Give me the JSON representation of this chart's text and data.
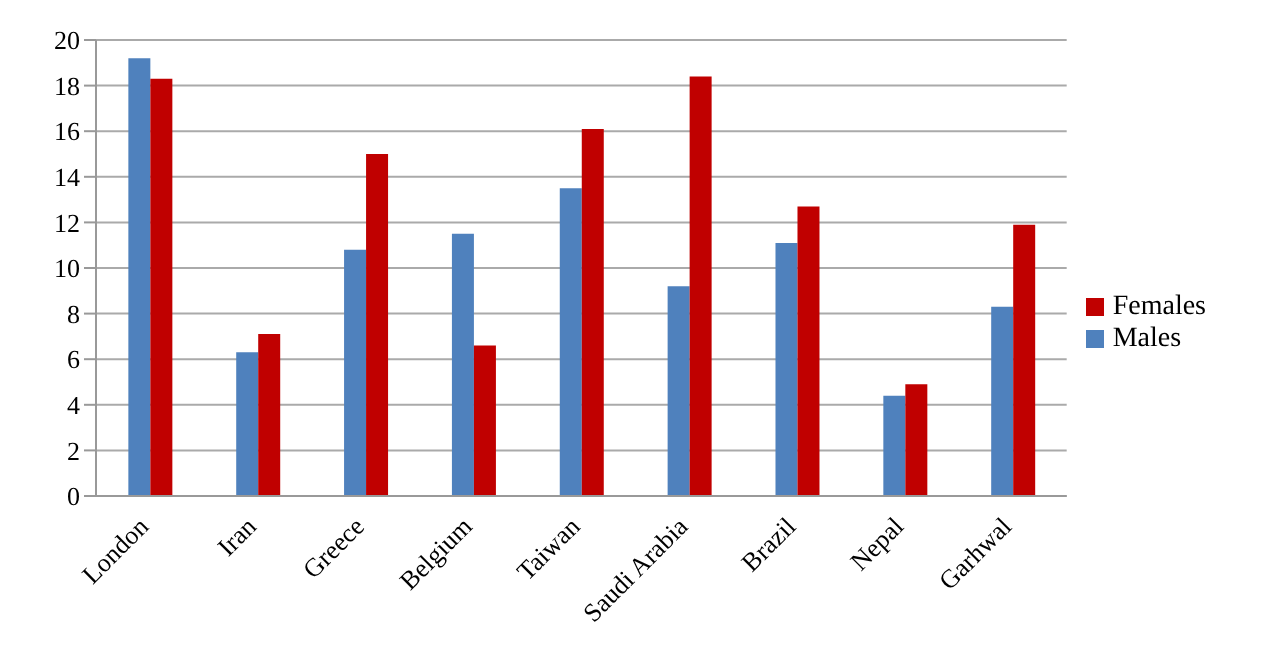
{
  "chart_data": {
    "type": "bar",
    "categories": [
      "London",
      "Iran",
      "Greece",
      "Belgium",
      "Taiwan",
      "Saudi Arabia",
      "Brazil",
      "Nepal",
      "Garhwal"
    ],
    "series": [
      {
        "name": "Males",
        "color": "#4f81bd",
        "values": [
          19.2,
          6.3,
          10.8,
          11.5,
          13.5,
          9.2,
          11.1,
          4.4,
          8.3
        ]
      },
      {
        "name": "Females",
        "color": "#c00000",
        "values": [
          18.3,
          7.1,
          15.0,
          6.6,
          16.1,
          18.4,
          12.7,
          4.9,
          11.9
        ]
      }
    ],
    "ylim": [
      0,
      20
    ],
    "yticks": [
      0,
      2,
      4,
      6,
      8,
      10,
      12,
      14,
      16,
      18,
      20
    ],
    "grid": "y",
    "legend": "right"
  }
}
